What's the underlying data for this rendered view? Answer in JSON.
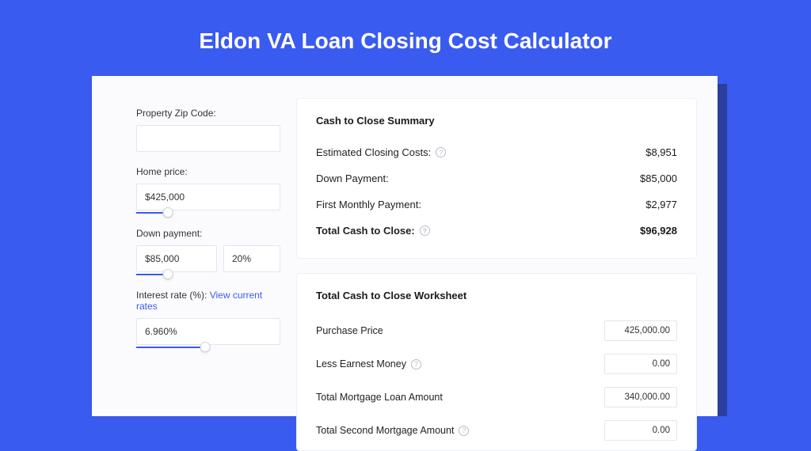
{
  "page": {
    "title": "Eldon VA Loan Closing Cost Calculator",
    "background_color": "#3a5bef",
    "shadow_color": "#2a3f9e",
    "card_bg": "#fbfbfd"
  },
  "left_panel": {
    "zip": {
      "label": "Property Zip Code:",
      "value": ""
    },
    "home_price": {
      "label": "Home price:",
      "value": "$425,000",
      "slider_percent": 22
    },
    "down_payment": {
      "label": "Down payment:",
      "value": "$85,000",
      "percent": "20%",
      "slider_percent": 22
    },
    "interest_rate": {
      "label": "Interest rate (%):",
      "link_text": "View current rates",
      "value": "6.960%",
      "slider_percent": 48
    }
  },
  "summary": {
    "title": "Cash to Close Summary",
    "rows": [
      {
        "label": "Estimated Closing Costs:",
        "value": "$8,951",
        "help": true,
        "bold": false
      },
      {
        "label": "Down Payment:",
        "value": "$85,000",
        "help": false,
        "bold": false
      },
      {
        "label": "First Monthly Payment:",
        "value": "$2,977",
        "help": false,
        "bold": false
      },
      {
        "label": "Total Cash to Close:",
        "value": "$96,928",
        "help": true,
        "bold": true
      }
    ]
  },
  "worksheet": {
    "title": "Total Cash to Close Worksheet",
    "rows": [
      {
        "label": "Purchase Price",
        "value": "425,000.00",
        "help": false
      },
      {
        "label": "Less Earnest Money",
        "value": "0.00",
        "help": true
      },
      {
        "label": "Total Mortgage Loan Amount",
        "value": "340,000.00",
        "help": false
      },
      {
        "label": "Total Second Mortgage Amount",
        "value": "0.00",
        "help": true
      }
    ]
  }
}
